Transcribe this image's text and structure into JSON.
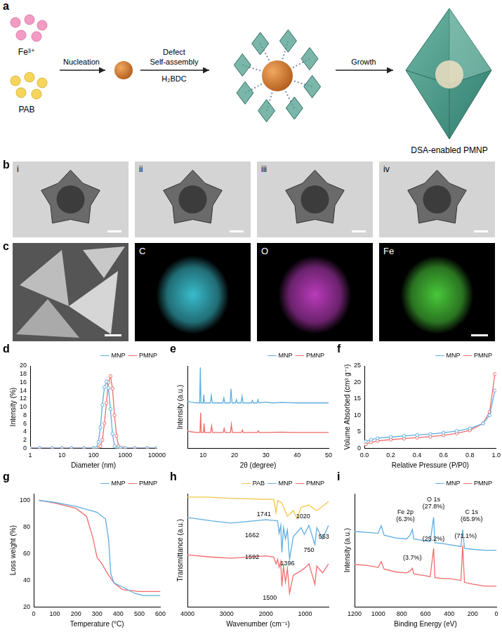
{
  "diagram": {
    "label": "a",
    "inputs": [
      "Fe³⁺",
      "PAB"
    ],
    "arrow1": [
      "Nucleation"
    ],
    "arrow2": [
      "Defect",
      "Self-assembly",
      "H₂BDC"
    ],
    "arrow3": [
      "Growth"
    ],
    "product": "DSA-enabled PMNP"
  },
  "tem": {
    "label": "b",
    "images": [
      "i",
      "ii",
      "iii",
      "iv"
    ]
  },
  "eds": {
    "label": "c",
    "maps": [
      "C",
      "O",
      "Fe"
    ]
  },
  "chart_data": [
    {
      "type": "line",
      "title": "d",
      "x_label": "Diameter (nm)",
      "y_label": "Intensity (%)",
      "log": "x",
      "xlim": [
        1,
        10000
      ],
      "xticks": [
        1,
        10,
        100,
        1000,
        10000
      ],
      "ylim": [
        0,
        20
      ],
      "yticks": [
        0,
        2,
        4,
        6,
        8,
        10,
        12,
        14,
        16,
        18,
        20
      ],
      "grid": false,
      "legend": "top-right",
      "series": [
        {
          "name": "MNP",
          "color": "#5eaee0",
          "marker": "circle",
          "line_style": "solid",
          "x": [
            1,
            2,
            5,
            10,
            20,
            50,
            100,
            122,
            142,
            164,
            190,
            220,
            255,
            295,
            342,
            396,
            459,
            531,
            615,
            712,
            1000,
            2000,
            5000,
            10000
          ],
          "values": [
            0,
            0,
            0,
            0,
            0,
            0,
            0,
            0,
            1.5,
            5,
            10.5,
            14.8,
            16.2,
            14.6,
            9.5,
            3.5,
            0.5,
            0,
            0,
            0,
            0,
            0,
            0,
            0
          ]
        },
        {
          "name": "PMNP",
          "color": "#f06b6b",
          "marker": "circle",
          "line_style": "solid",
          "x": [
            1,
            2,
            5,
            10,
            20,
            50,
            100,
            142,
            164,
            190,
            220,
            255,
            295,
            342,
            396,
            459,
            531,
            615,
            712,
            825,
            1000,
            2000,
            5000,
            10000
          ],
          "values": [
            0,
            0,
            0,
            0,
            0,
            0,
            0,
            0,
            0.5,
            2,
            6,
            11,
            16,
            17.5,
            14.5,
            8,
            3,
            0.5,
            0,
            0,
            0,
            0,
            0,
            0
          ]
        }
      ]
    },
    {
      "type": "line",
      "title": "e",
      "x_label": "2θ (degree)",
      "y_label": "Intensity (a.u.)",
      "xlim": [
        5,
        50
      ],
      "xticks": [
        10,
        20,
        30,
        40,
        50
      ],
      "ylim": [
        0,
        100
      ],
      "tick_labels": "x",
      "grid": false,
      "legend": "top-right",
      "series": [
        {
          "name": "MNP",
          "color": "#5eaee0",
          "marker": "none",
          "line_style": "solid",
          "x": [
            5,
            6,
            7,
            8,
            8.9,
            9.1,
            9.3,
            10.0,
            10.2,
            10.4,
            12.3,
            12.6,
            12.9,
            14,
            16.3,
            16.6,
            16.9,
            18.6,
            18.9,
            19.2,
            20.3,
            20.6,
            20.9,
            22.1,
            22.4,
            22.7,
            25.4,
            25.7,
            26,
            27.2,
            27.5,
            27.8,
            30,
            32,
            35,
            40,
            45,
            50
          ],
          "values": [
            57,
            56,
            55.5,
            55,
            55,
            98,
            55,
            55,
            65,
            55,
            55,
            64,
            55,
            55,
            55,
            61,
            55,
            55,
            72,
            55,
            55,
            59,
            55,
            55,
            63,
            55,
            55,
            58,
            55,
            55,
            59,
            55,
            56,
            55,
            55.5,
            55,
            55,
            55
          ]
        },
        {
          "name": "PMNP",
          "color": "#f06b6b",
          "marker": "none",
          "line_style": "solid",
          "x": [
            5,
            6,
            7,
            8,
            9.0,
            9.2,
            9.4,
            10.1,
            10.3,
            10.5,
            12.4,
            12.7,
            13,
            16.4,
            16.7,
            17,
            18.7,
            19.0,
            19.3,
            22.2,
            22.5,
            22.8,
            27.3,
            27.6,
            27.9,
            30,
            35,
            40,
            45,
            50
          ],
          "values": [
            21,
            20,
            19.5,
            19,
            19,
            43,
            19,
            19,
            30,
            19,
            19,
            27,
            19,
            19,
            24,
            19,
            19,
            29,
            19,
            19,
            22,
            19,
            19,
            21,
            19,
            19,
            19.5,
            19,
            19,
            19
          ]
        }
      ]
    },
    {
      "type": "line",
      "title": "f",
      "x_label": "Relative Pressure (P/P0)",
      "y_label": "Volume Absorbed (cm³ g⁻¹)",
      "xlim": [
        0,
        1
      ],
      "xticks": [
        {
          "value": 0,
          "label": "0.0"
        },
        {
          "value": 0.2,
          "label": "0.2"
        },
        {
          "value": 0.4,
          "label": "0.4"
        },
        {
          "value": 0.6,
          "label": "0.6"
        },
        {
          "value": 0.8,
          "label": "0.8"
        },
        {
          "value": 1,
          "label": "1.0"
        }
      ],
      "ylim": [
        0,
        25
      ],
      "yticks": [
        0,
        5,
        10,
        15,
        20,
        25
      ],
      "grid": false,
      "legend": "top-right",
      "series": [
        {
          "name": "MNP",
          "color": "#5eaee0",
          "marker": "circle",
          "line_style": "solid",
          "x": [
            0.01,
            0.05,
            0.1,
            0.2,
            0.3,
            0.4,
            0.5,
            0.6,
            0.7,
            0.8,
            0.9,
            0.95,
            0.99
          ],
          "values": [
            2.0,
            2.6,
            3.0,
            3.4,
            3.7,
            4.0,
            4.3,
            4.7,
            5.2,
            6.0,
            7.5,
            10,
            17.5
          ]
        },
        {
          "name": "PMNP",
          "color": "#f06b6b",
          "marker": "circle",
          "line_style": "solid",
          "x": [
            0.01,
            0.05,
            0.1,
            0.2,
            0.3,
            0.4,
            0.5,
            0.6,
            0.7,
            0.8,
            0.9,
            0.95,
            0.99
          ],
          "values": [
            1.2,
            1.8,
            2.2,
            2.6,
            2.9,
            3.2,
            3.5,
            3.9,
            4.5,
            5.4,
            7.5,
            11,
            22.5
          ]
        }
      ]
    },
    {
      "type": "line",
      "title": "g",
      "x_label": "Temperature (°C)",
      "y_label": "Loss weight (%)",
      "xlim": [
        0,
        600
      ],
      "xticks": [
        0,
        100,
        200,
        300,
        400,
        500,
        600
      ],
      "ylim": [
        20,
        105
      ],
      "yticks": [
        20,
        40,
        60,
        80,
        100
      ],
      "grid": false,
      "legend": "top-right",
      "series": [
        {
          "name": "MNP",
          "color": "#5eaee0",
          "marker": "none",
          "line_style": "solid",
          "x": [
            25,
            100,
            200,
            300,
            340,
            355,
            365,
            380,
            420,
            480,
            520,
            600
          ],
          "values": [
            100,
            98.5,
            95.5,
            91,
            86,
            70,
            45,
            38,
            35,
            30,
            28.5,
            28.5
          ]
        },
        {
          "name": "PMNP",
          "color": "#f06b6b",
          "marker": "none",
          "line_style": "solid",
          "x": [
            25,
            100,
            200,
            250,
            280,
            300,
            320,
            350,
            380,
            420,
            500,
            600
          ],
          "values": [
            100,
            98,
            94,
            88,
            72,
            57,
            53,
            45,
            38,
            33,
            31.5,
            31.5
          ]
        }
      ]
    },
    {
      "type": "line",
      "title": "h",
      "x_label": "Wavenumber (cm⁻¹)",
      "y_label": "Transmittance (a.u.)",
      "xlim": [
        4000,
        400
      ],
      "xticks": [
        4000,
        3000,
        2000,
        1000
      ],
      "ylim": [
        0,
        100
      ],
      "tick_labels": "x",
      "grid": false,
      "legend": "top-right",
      "series": [
        {
          "name": "PAB",
          "color": "#f2c744",
          "marker": "none",
          "line_style": "solid",
          "x": [
            4000,
            3500,
            3000,
            2000,
            1800,
            1741,
            1700,
            1600,
            1450,
            1300,
            1200,
            1100,
            900,
            700,
            400
          ],
          "values": [
            97,
            97,
            96,
            95,
            95,
            83,
            94,
            92,
            80,
            85,
            78,
            88,
            90,
            85,
            93
          ]
        },
        {
          "name": "MNP",
          "color": "#5eaee0",
          "marker": "none",
          "line_style": "solid",
          "x": [
            4000,
            3400,
            2900,
            2000,
            1700,
            1662,
            1620,
            1592,
            1550,
            1500,
            1450,
            1396,
            1300,
            1100,
            1020,
            900,
            750,
            700,
            553,
            400
          ],
          "values": [
            79,
            76,
            74,
            77,
            76,
            65,
            72,
            48,
            70,
            60,
            68,
            42,
            62,
            70,
            64,
            72,
            55,
            70,
            60,
            72
          ]
        },
        {
          "name": "PMNP",
          "color": "#f06b6b",
          "marker": "none",
          "line_style": "solid",
          "x": [
            4000,
            3400,
            2900,
            2000,
            1800,
            1741,
            1700,
            1662,
            1620,
            1592,
            1550,
            1500,
            1450,
            1396,
            1300,
            1100,
            1020,
            900,
            750,
            700,
            553,
            400
          ],
          "values": [
            46,
            44,
            43,
            45,
            44,
            38,
            42,
            35,
            40,
            18,
            36,
            22,
            34,
            12,
            28,
            32,
            34,
            38,
            20,
            36,
            30,
            38
          ]
        }
      ],
      "annotations": [
        {
          "lines": [
            "1741"
          ],
          "x": 2050,
          "y": 82
        },
        {
          "lines": [
            "1662"
          ],
          "x": 2350,
          "y": 63
        },
        {
          "lines": [
            "1592"
          ],
          "x": 2350,
          "y": 44
        },
        {
          "lines": [
            "1396"
          ],
          "x": 1450,
          "y": 38
        },
        {
          "lines": [
            "1500"
          ],
          "x": 1900,
          "y": 8
        },
        {
          "lines": [
            "1020"
          ],
          "x": 1050,
          "y": 80
        },
        {
          "lines": [
            "750"
          ],
          "x": 900,
          "y": 50
        },
        {
          "lines": [
            "553"
          ],
          "x": 520,
          "y": 62
        }
      ]
    },
    {
      "type": "line",
      "title": "i",
      "x_label": "Binding Energy (eV)",
      "y_label": "Intensity (a.u.)",
      "xlim": [
        1200,
        0
      ],
      "xticks": [
        1200,
        1000,
        800,
        600,
        400,
        200,
        0
      ],
      "ylim": [
        0,
        120
      ],
      "tick_labels": "x",
      "grid": false,
      "legend": "top-right",
      "series": [
        {
          "name": "MNP",
          "color": "#5eaee0",
          "marker": "none",
          "line_style": "solid",
          "x": [
            1200,
            1100,
            1000,
            975,
            950,
            850,
            760,
            730,
            711,
            700,
            650,
            600,
            560,
            531,
            520,
            450,
            400,
            300,
            285,
            270,
            200,
            100,
            0
          ],
          "values": [
            80,
            79,
            78,
            86,
            76,
            73,
            72,
            76,
            82,
            72,
            71,
            70,
            69,
            95,
            68,
            67,
            66,
            64,
            82,
            62,
            61,
            60,
            60
          ]
        },
        {
          "name": "PMNP",
          "color": "#f06b6b",
          "marker": "none",
          "line_style": "solid",
          "x": [
            1200,
            1100,
            1000,
            975,
            950,
            850,
            760,
            730,
            711,
            700,
            650,
            600,
            560,
            531,
            520,
            450,
            400,
            300,
            285,
            270,
            200,
            100,
            0
          ],
          "values": [
            45,
            44,
            42,
            48,
            40,
            37,
            36,
            38,
            41,
            35,
            34,
            33,
            32,
            62,
            31,
            30,
            30,
            28,
            65,
            26,
            24,
            22,
            22
          ]
        }
      ],
      "annotations": [
        {
          "lines": [
            "Fe 2p",
            "(6.3%)"
          ],
          "x": 770,
          "y": 100
        },
        {
          "lines": [
            "O 1s",
            "(27.8%)"
          ],
          "x": 531,
          "y": 114
        },
        {
          "lines": [
            "C 1s",
            "(65.9%)"
          ],
          "x": 210,
          "y": 100
        },
        {
          "lines": [
            "(3.7%)"
          ],
          "x": 711,
          "y": 52
        },
        {
          "lines": [
            "(25.2%)"
          ],
          "x": 531,
          "y": 72
        },
        {
          "lines": [
            "(71.1%)"
          ],
          "x": 260,
          "y": 75
        }
      ]
    }
  ]
}
